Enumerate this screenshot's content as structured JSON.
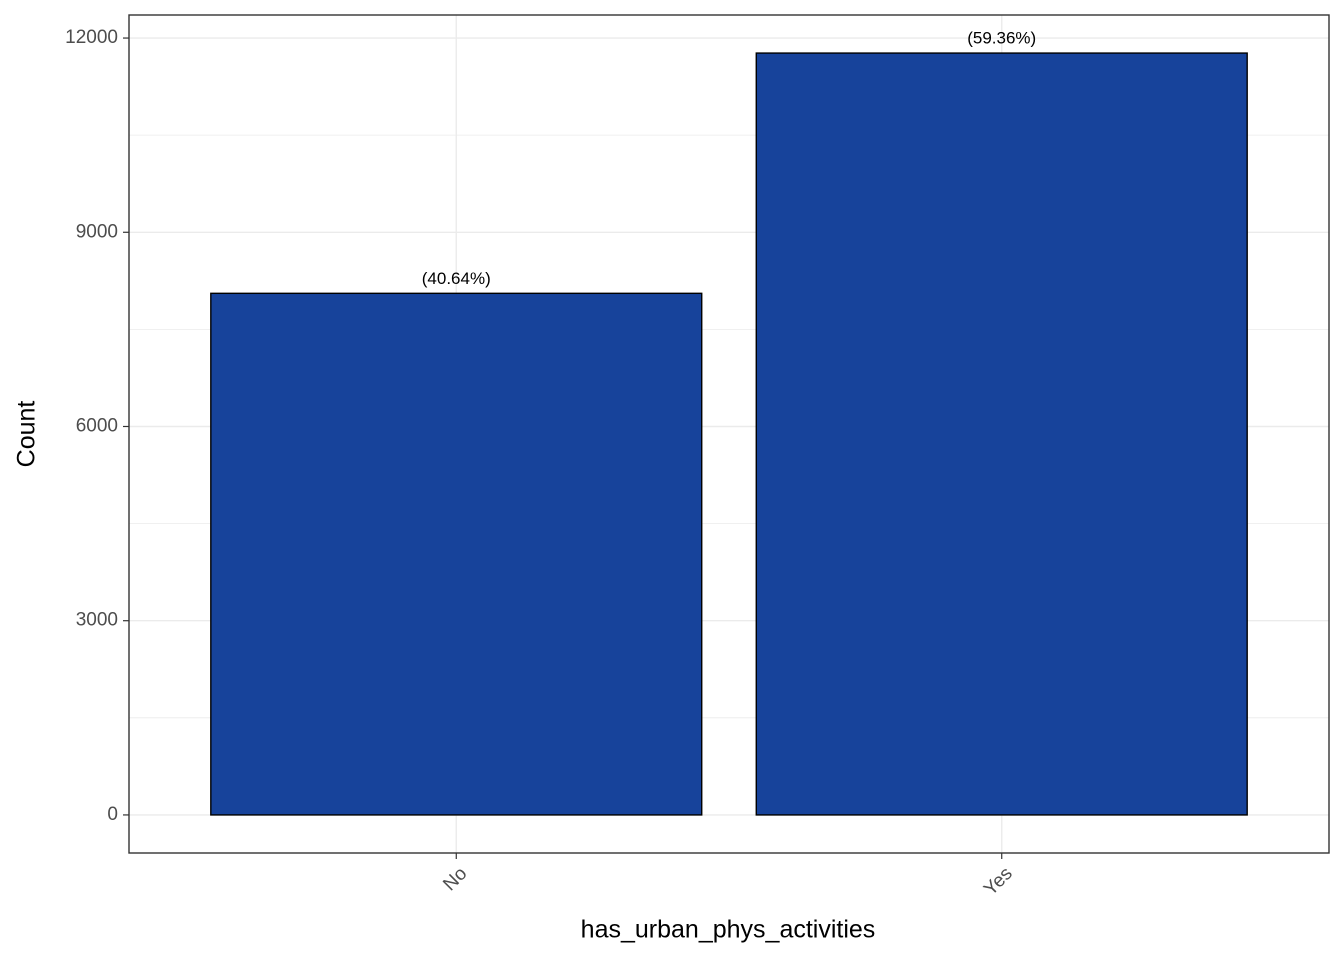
{
  "chart_data": {
    "type": "bar",
    "x_label": "has_urban_phys_activities",
    "y_label": "Count",
    "categories": [
      "No",
      "Yes"
    ],
    "values": [
      8057,
      11768
    ],
    "bar_labels": [
      "(40.64%)",
      "(59.36%)"
    ],
    "color": "#17439b",
    "edge_color": "#000000",
    "ylim": [
      -588,
      12356
    ],
    "yticks": [
      0,
      3000,
      6000,
      9000,
      12000
    ],
    "y_minor_ticks": [
      1500,
      4500,
      7500,
      10500
    ],
    "grid": true
  }
}
